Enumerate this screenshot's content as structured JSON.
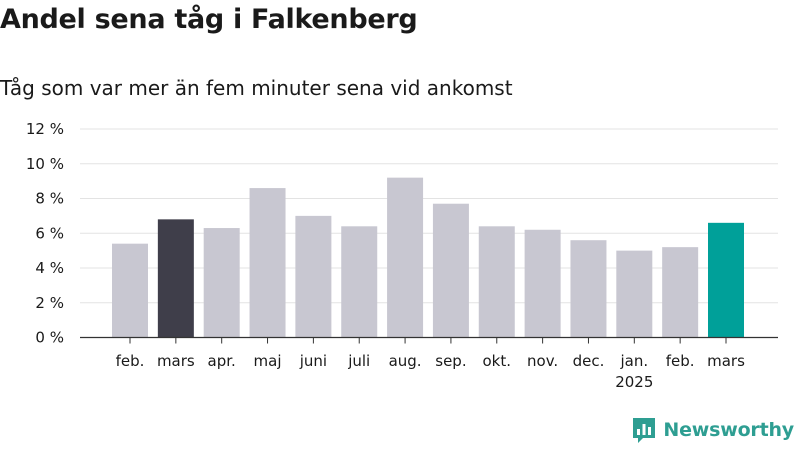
{
  "chart_data": {
    "type": "bar",
    "title": "Andel sena tåg i Falkenberg",
    "subtitle": "Tåg som var mer än fem minuter sena vid ankomst",
    "categories": [
      "feb.",
      "mars",
      "apr.",
      "maj",
      "juni",
      "juli",
      "aug.",
      "sep.",
      "okt.",
      "nov.",
      "dec.",
      "jan.",
      "feb.",
      "mars"
    ],
    "year_labels": [
      "",
      "",
      "",
      "",
      "",
      "",
      "",
      "",
      "",
      "",
      "",
      "2025",
      "",
      ""
    ],
    "values": [
      5.4,
      6.8,
      6.3,
      8.6,
      7.0,
      6.4,
      9.2,
      7.7,
      6.4,
      6.2,
      5.6,
      5.0,
      5.2,
      6.6
    ],
    "bar_colors": [
      "#c8c7d1",
      "#3f3e4a",
      "#c8c7d1",
      "#c8c7d1",
      "#c8c7d1",
      "#c8c7d1",
      "#c8c7d1",
      "#c8c7d1",
      "#c8c7d1",
      "#c8c7d1",
      "#c8c7d1",
      "#c8c7d1",
      "#c8c7d1",
      "#00a099"
    ],
    "yticks": [
      0,
      2,
      4,
      6,
      8,
      10,
      12
    ],
    "ytick_labels": [
      "0 %",
      "2 %",
      "4 %",
      "6 %",
      "8 %",
      "10 %",
      "12 %"
    ],
    "ylim": [
      0,
      12
    ],
    "grid": true,
    "xlabel": "",
    "ylabel": ""
  },
  "brand": {
    "name": "Newsworthy",
    "color": "#2e9e92",
    "icon": "bar-chart-logo-icon"
  }
}
